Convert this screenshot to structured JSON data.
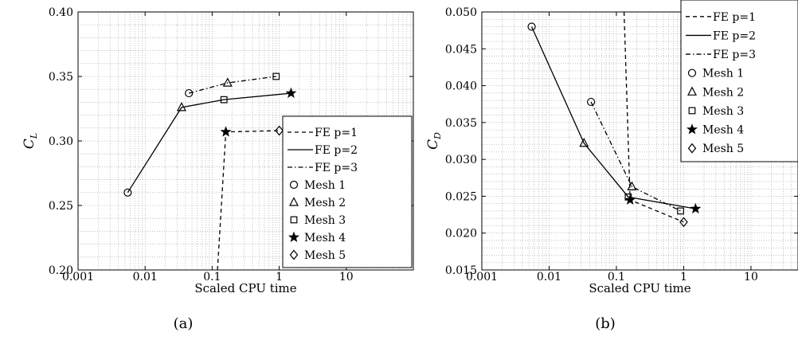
{
  "chart_data": [
    {
      "type": "line",
      "subcaption": "(a)",
      "xlabel": "Scaled CPU time",
      "ylabel": "C",
      "ylabel_sub": "L",
      "xscale": "log",
      "xlim": [
        0.001,
        100
      ],
      "ylim": [
        0.2,
        0.4
      ],
      "xticks": [
        0.001,
        0.01,
        0.1,
        1,
        10
      ],
      "xtick_labels": [
        "0.001",
        "0.01",
        "0.1",
        "1",
        "10"
      ],
      "yticks": [
        0.2,
        0.25,
        0.3,
        0.35,
        0.4
      ],
      "ytick_labels": [
        "0.20",
        "0.25",
        "0.30",
        "0.35",
        "0.40"
      ],
      "grid": "dotted, major and minor",
      "legend_position": "right",
      "series": [
        {
          "name": "FE p=1",
          "line": "dashed",
          "points": [
            [
              0.12,
              0.2
            ],
            [
              0.16,
              0.307
            ],
            [
              1.0,
              0.308
            ]
          ],
          "markers": [
            null,
            "star",
            "diamond"
          ]
        },
        {
          "name": "FE p=2",
          "line": "solid",
          "points": [
            [
              0.0055,
              0.26
            ],
            [
              0.035,
              0.326
            ],
            [
              0.15,
              0.332
            ],
            [
              1.5,
              0.337
            ]
          ],
          "markers": [
            "circle",
            "triangle",
            "square",
            "star"
          ]
        },
        {
          "name": "FE p=3",
          "line": "dashdot",
          "points": [
            [
              0.045,
              0.337
            ],
            [
              0.17,
              0.345
            ],
            [
              0.9,
              0.35
            ]
          ],
          "markers": [
            "circle",
            "triangle",
            "square"
          ]
        }
      ],
      "legend": [
        {
          "label": "FE p=1",
          "kind": "line",
          "style": "dashed"
        },
        {
          "label": "FE p=2",
          "kind": "line",
          "style": "solid"
        },
        {
          "label": "FE p=3",
          "kind": "line",
          "style": "dashdot"
        },
        {
          "label": "Mesh 1",
          "kind": "marker",
          "marker": "circle"
        },
        {
          "label": "Mesh 2",
          "kind": "marker",
          "marker": "triangle"
        },
        {
          "label": "Mesh 3",
          "kind": "marker",
          "marker": "square"
        },
        {
          "label": "Mesh 4",
          "kind": "marker",
          "marker": "star"
        },
        {
          "label": "Mesh 5",
          "kind": "marker",
          "marker": "diamond"
        }
      ]
    },
    {
      "type": "line",
      "subcaption": "(b)",
      "xlabel": "Scaled CPU time",
      "ylabel": "C",
      "ylabel_sub": "D",
      "xscale": "log",
      "xlim": [
        0.001,
        50
      ],
      "ylim": [
        0.015,
        0.05
      ],
      "xticks": [
        0.001,
        0.01,
        0.1,
        1,
        10
      ],
      "xtick_labels": [
        "0.001",
        "0.01",
        "0.1",
        "1",
        "10"
      ],
      "yticks": [
        0.015,
        0.02,
        0.025,
        0.03,
        0.035,
        0.04,
        0.045,
        0.05
      ],
      "ytick_labels": [
        "0.015",
        "0.020",
        "0.025",
        "0.030",
        "0.035",
        "0.040",
        "0.045",
        "0.050"
      ],
      "grid": "dotted, major and minor",
      "legend_position": "top-right",
      "series": [
        {
          "name": "FE p=1",
          "line": "dashed",
          "points": [
            [
              0.13,
              0.05
            ],
            [
              0.16,
              0.0245
            ],
            [
              1.0,
              0.0215
            ]
          ],
          "markers": [
            null,
            "star",
            "diamond"
          ]
        },
        {
          "name": "FE p=2",
          "line": "solid",
          "points": [
            [
              0.0055,
              0.048
            ],
            [
              0.033,
              0.0322
            ],
            [
              0.15,
              0.0249
            ],
            [
              1.5,
              0.0233
            ]
          ],
          "markers": [
            "circle",
            "triangle",
            "square",
            "star"
          ]
        },
        {
          "name": "FE p=3",
          "line": "dashdot",
          "points": [
            [
              0.042,
              0.0378
            ],
            [
              0.17,
              0.0263
            ],
            [
              0.9,
              0.023
            ]
          ],
          "markers": [
            "circle",
            "triangle",
            "square"
          ]
        }
      ],
      "legend": [
        {
          "label": "FE p=1",
          "kind": "line",
          "style": "dashed"
        },
        {
          "label": "FE p=2",
          "kind": "line",
          "style": "solid"
        },
        {
          "label": "FE p=3",
          "kind": "line",
          "style": "dashdot"
        },
        {
          "label": "Mesh 1",
          "kind": "marker",
          "marker": "circle"
        },
        {
          "label": "Mesh 2",
          "kind": "marker",
          "marker": "triangle"
        },
        {
          "label": "Mesh 3",
          "kind": "marker",
          "marker": "square"
        },
        {
          "label": "Mesh 4",
          "kind": "marker",
          "marker": "star"
        },
        {
          "label": "Mesh 5",
          "kind": "marker",
          "marker": "diamond"
        }
      ]
    }
  ]
}
